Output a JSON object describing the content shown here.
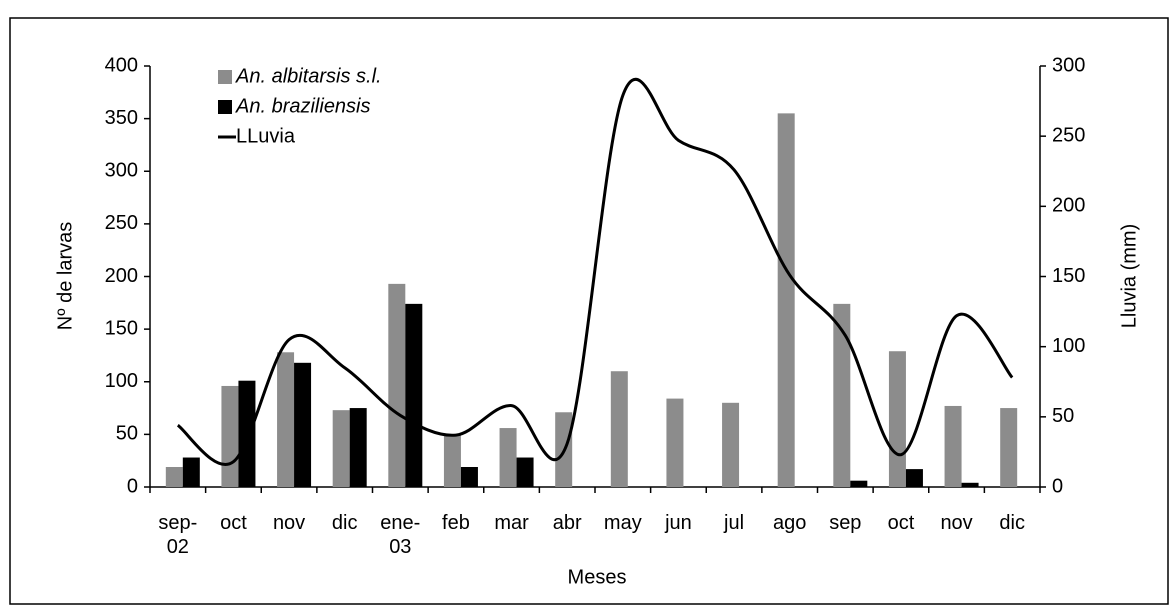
{
  "chart_data": {
    "type": "bar",
    "x_label": "Meses",
    "y_label": "Nº de larvas",
    "y2_label": "Lluvia (mm)",
    "categories": [
      "sep-\n02",
      "oct",
      "nov",
      "dic",
      "ene-\n03",
      "feb",
      "mar",
      "abr",
      "may",
      "jun",
      "jul",
      "ago",
      "sep",
      "oct",
      "nov",
      "dic"
    ],
    "series": [
      {
        "name": "An. albitarsis s.l.",
        "type": "bar",
        "color": "#8c8c8c",
        "values": [
          19,
          96,
          128,
          73,
          193,
          50,
          56,
          71,
          110,
          84,
          80,
          355,
          174,
          129,
          77,
          75
        ]
      },
      {
        "name": "An. braziliensis",
        "type": "bar",
        "color": "#000000",
        "values": [
          28,
          101,
          118,
          75,
          174,
          19,
          28,
          0,
          0,
          0,
          0,
          0,
          6,
          17,
          4,
          0
        ]
      },
      {
        "name": "LLuvia",
        "type": "line",
        "axis": "y2",
        "color": "#000000",
        "values": [
          44,
          18,
          105,
          85,
          51,
          37,
          58,
          31,
          279,
          247,
          226,
          151,
          108,
          23,
          122,
          78
        ]
      }
    ],
    "ylim": [
      0,
      400
    ],
    "yticks": [
      0,
      50,
      100,
      150,
      200,
      250,
      300,
      350,
      400
    ],
    "y2lim": [
      0,
      300
    ],
    "y2ticks": [
      0,
      50,
      100,
      150,
      200,
      250,
      300
    ],
    "legend": "upper-left",
    "grid": false
  }
}
